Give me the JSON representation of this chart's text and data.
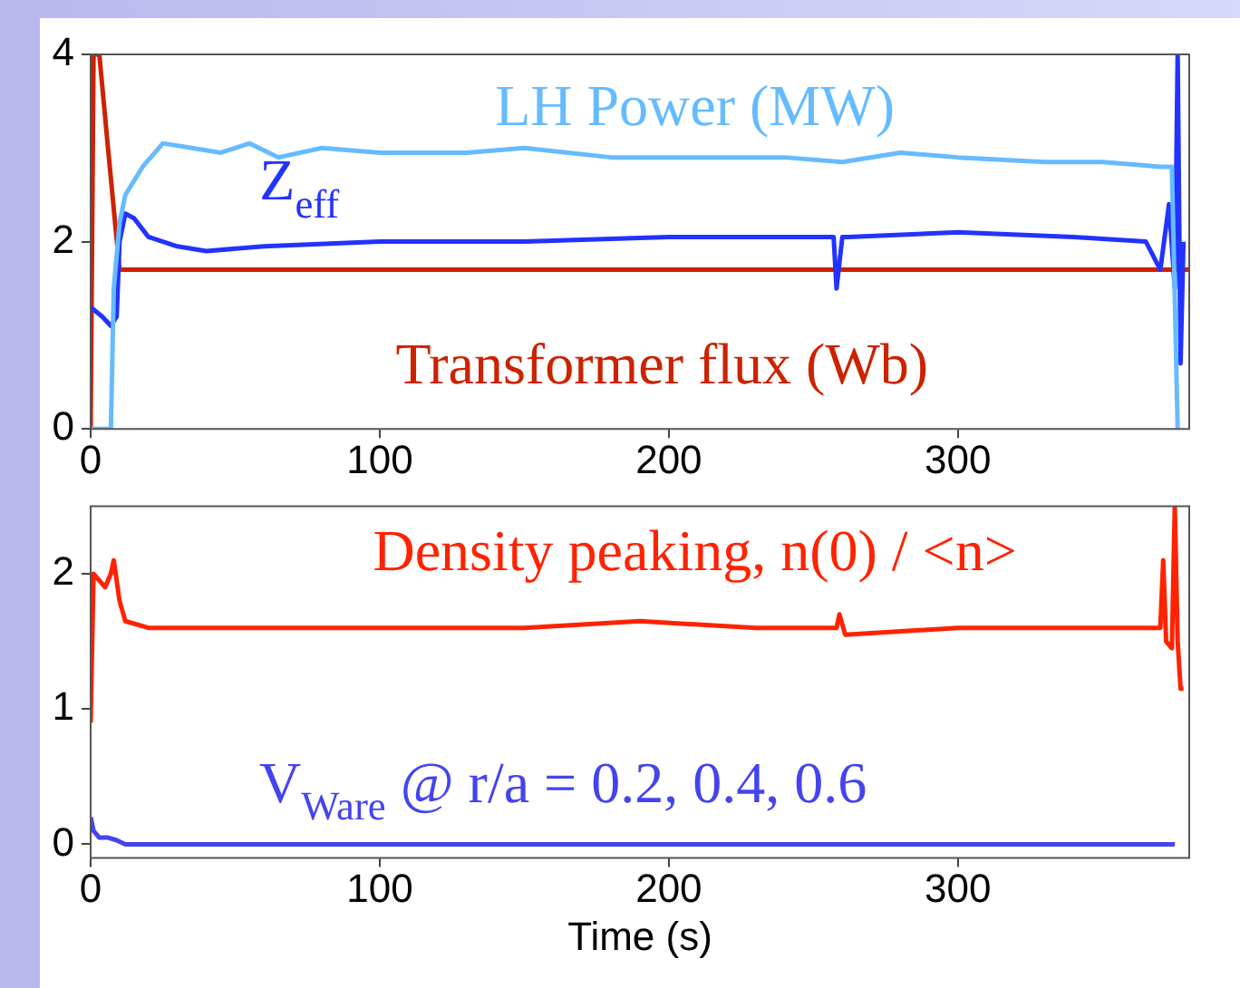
{
  "chart_data": [
    {
      "type": "line",
      "xlim": [
        0,
        380
      ],
      "xticks": [
        0,
        100,
        200,
        300
      ],
      "ylim": [
        0,
        4
      ],
      "yticks": [
        0,
        2,
        4
      ],
      "grid": false,
      "legend": false,
      "marker": "none",
      "series": [
        {
          "name": "LH Power (MW)",
          "color": "#66bbff",
          "x": [
            0,
            7,
            8,
            10,
            12,
            18,
            25,
            35,
            45,
            55,
            65,
            80,
            100,
            130,
            150,
            180,
            210,
            240,
            260,
            280,
            300,
            330,
            350,
            370,
            374,
            376
          ],
          "values": [
            0,
            0,
            1.5,
            2.2,
            2.5,
            2.8,
            3.05,
            3.0,
            2.95,
            3.05,
            2.9,
            3.0,
            2.95,
            2.95,
            3.0,
            2.9,
            2.9,
            2.9,
            2.85,
            2.95,
            2.9,
            2.85,
            2.85,
            2.8,
            2.8,
            0
          ]
        },
        {
          "name": "Z$_{eff}$",
          "color": "#2233ff",
          "x": [
            0,
            4,
            7,
            9,
            10,
            12,
            15,
            20,
            30,
            40,
            60,
            100,
            150,
            200,
            250,
            257,
            258,
            260,
            262,
            300,
            340,
            365,
            370,
            373,
            375,
            376,
            377,
            378
          ],
          "values": [
            1.3,
            1.2,
            1.1,
            1.2,
            2.0,
            2.3,
            2.25,
            2.05,
            1.95,
            1.9,
            1.95,
            2.0,
            2.0,
            2.05,
            2.05,
            2.05,
            1.5,
            2.05,
            2.05,
            2.1,
            2.05,
            2.0,
            1.7,
            2.4,
            1.5,
            4,
            0.7,
            2.0
          ]
        },
        {
          "name": "Transformer flux (Wb)",
          "color": "#cc2200",
          "x": [
            0,
            1,
            2,
            3,
            6,
            10,
            100,
            200,
            300,
            380
          ],
          "values": [
            0,
            4,
            4,
            4,
            3.0,
            1.7,
            1.7,
            1.7,
            1.7,
            1.7
          ]
        }
      ]
    },
    {
      "type": "line",
      "xlim": [
        0,
        380
      ],
      "xticks": [
        0,
        100,
        200,
        300
      ],
      "ylim": [
        -0.1,
        2.5
      ],
      "yticks": [
        0,
        1,
        2
      ],
      "xlabel": "Time (s)",
      "grid": false,
      "legend": false,
      "marker": "none",
      "series": [
        {
          "name": "Density peaking, n(0) / <n>",
          "color": "#ff2200",
          "x": [
            0,
            1,
            3,
            5,
            7,
            8,
            10,
            12,
            20,
            50,
            100,
            150,
            190,
            230,
            258,
            259,
            261,
            300,
            350,
            370,
            371,
            372,
            374,
            375,
            376,
            377,
            378
          ],
          "values": [
            0.9,
            2.0,
            1.95,
            1.9,
            2.0,
            2.1,
            1.8,
            1.65,
            1.6,
            1.6,
            1.6,
            1.6,
            1.65,
            1.6,
            1.6,
            1.7,
            1.55,
            1.6,
            1.6,
            1.6,
            2.1,
            1.5,
            1.45,
            2.5,
            1.5,
            1.15,
            1.15
          ]
        },
        {
          "name": "V$_{Ware}$ @ r/a = 0.2, 0.4, 0.6",
          "color": "#4444ee",
          "x": [
            0,
            1,
            3,
            6,
            9,
            12,
            50,
            100,
            200,
            300,
            375
          ],
          "values": [
            0.2,
            0.1,
            0.05,
            0.05,
            0.03,
            0,
            0,
            0,
            0,
            0,
            0
          ]
        }
      ]
    }
  ]
}
